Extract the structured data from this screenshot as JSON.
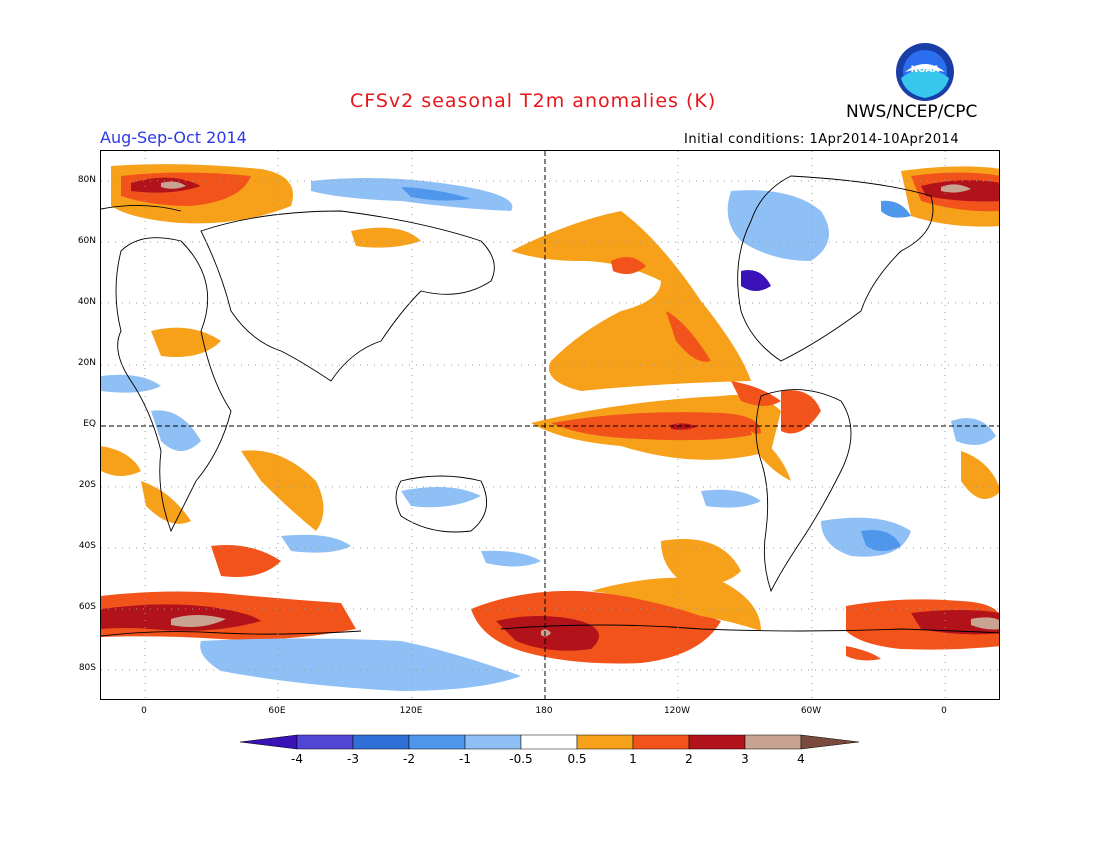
{
  "title": "CFSv2 seasonal T2m anomalies (K)",
  "agency": "NWS/NCEP/CPC",
  "period": "Aug-Sep-Oct 2014",
  "initial_conditions": "Initial conditions: 1Apr2014-10Apr2014",
  "logo_text": "NOAA",
  "lat_labels": [
    "80N",
    "60N",
    "40N",
    "20N",
    "EQ",
    "20S",
    "40S",
    "60S",
    "80S"
  ],
  "lon_labels": [
    "0",
    "60E",
    "120E",
    "180",
    "120W",
    "60W",
    "0"
  ],
  "colorbar": {
    "labels": [
      "-4",
      "-3",
      "-2",
      "-1",
      "-0.5",
      "0.5",
      "1",
      "2",
      "3",
      "4"
    ],
    "colors": [
      "#3a12b8",
      "#5145d6",
      "#2f6fd8",
      "#4f97ec",
      "#8fc0f5",
      "#ffffff",
      "#f7a11a",
      "#f2531a",
      "#b2121a",
      "#c9a392",
      "#7a4a3c"
    ]
  }
}
